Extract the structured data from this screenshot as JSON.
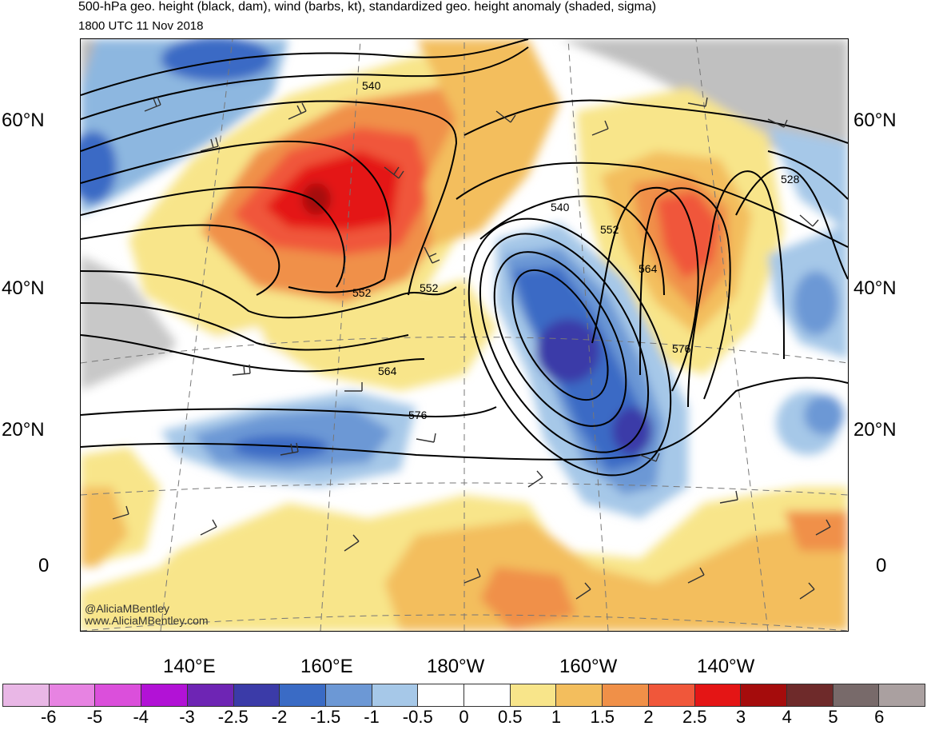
{
  "header": {
    "title": "500-hPa geo. height (black, dam), wind (barbs, kt), standardized geo. height anomaly (shaded, sigma)",
    "valid_time": "1800 UTC 11 Nov 2018"
  },
  "latitude_labels": [
    "60°N",
    "40°N",
    "20°N",
    "0"
  ],
  "longitude_labels": [
    "140°E",
    "160°E",
    "180°W",
    "160°W",
    "140°W"
  ],
  "contour_labels": [
    "540",
    "540",
    "528",
    "552",
    "552",
    "552",
    "564",
    "564",
    "576",
    "576"
  ],
  "credits": {
    "handle": "@AliciaMBentley",
    "website": "www.AliciaMBentley.com"
  },
  "colorbar": {
    "colors": [
      "#e9b7e6",
      "#e783e2",
      "#db4fdb",
      "#b212d6",
      "#6e25b4",
      "#3b3ba8",
      "#3a6bc5",
      "#6c98d5",
      "#a6c8e8",
      "#ffffff",
      "#ffffff",
      "#f8e58a",
      "#f3be5d",
      "#f09048",
      "#f0573a",
      "#e41515",
      "#a50c0c",
      "#6e2a2a",
      "#786a6a",
      "#aaa0a0"
    ],
    "labels": [
      "-6",
      "-5",
      "-4",
      "-3",
      "-2.5",
      "-2",
      "-1.5",
      "-1",
      "-0.5",
      "0",
      "0.5",
      "1",
      "1.5",
      "2",
      "2.5",
      "3",
      "4",
      "5",
      "6"
    ]
  }
}
